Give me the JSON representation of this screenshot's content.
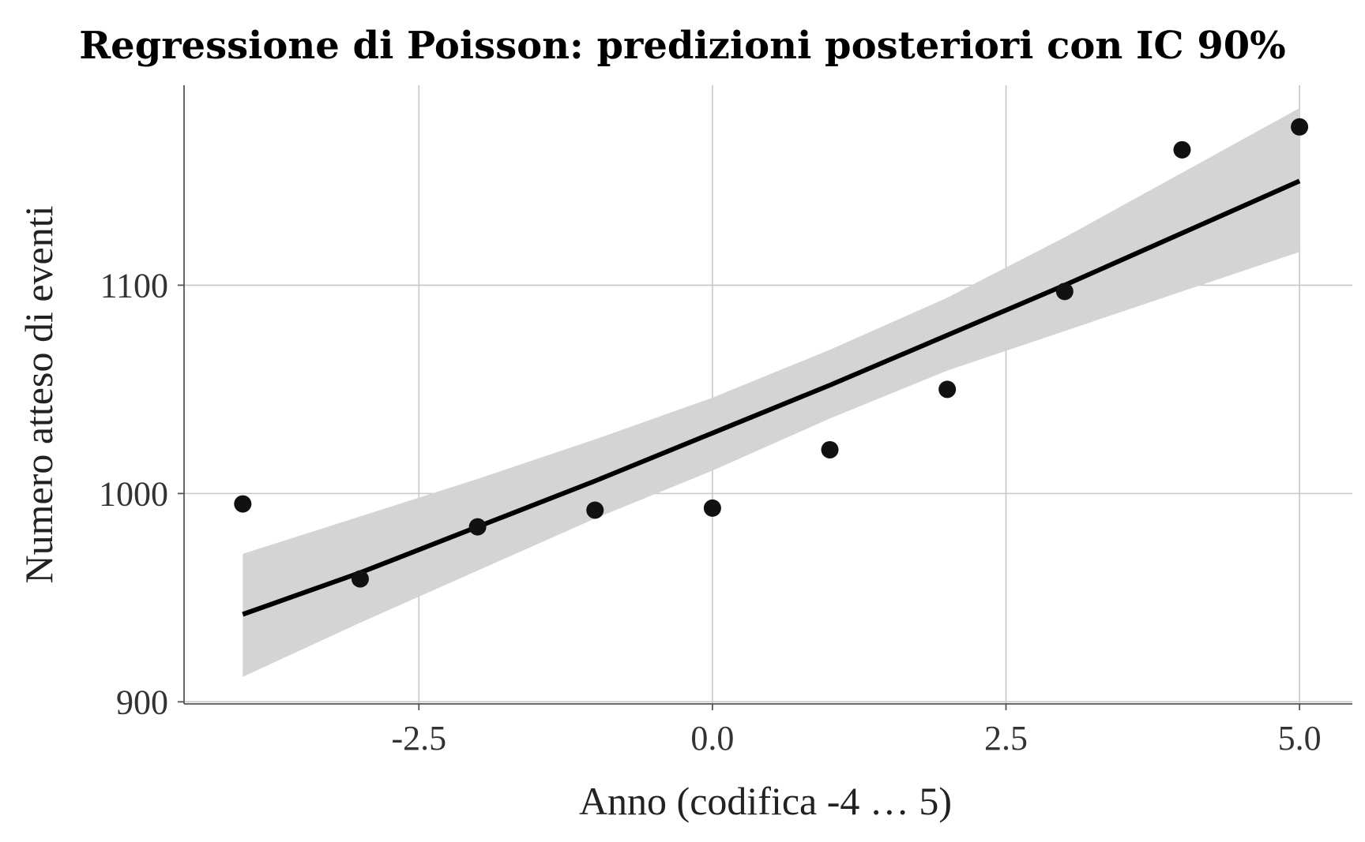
{
  "chart_data": {
    "type": "line",
    "title": "Regressione di Poisson: predizioni posteriori con IC 90%",
    "xlabel": "Anno (codifica -4 … 5)",
    "ylabel": "Numero atteso di eventi",
    "xlim": [
      -4.5,
      5.45
    ],
    "ylim": [
      899,
      1196
    ],
    "x_ticks": [
      -2.5,
      0.0,
      2.5,
      5.0
    ],
    "x_tick_labels": [
      "-2.5",
      "0.0",
      "2.5",
      "5.0"
    ],
    "y_ticks": [
      900,
      1000,
      1100
    ],
    "y_tick_labels": [
      "900",
      "1000",
      "1100"
    ],
    "grid": true,
    "legend": "none",
    "observed": {
      "x": [
        -4,
        -3,
        -2,
        -1,
        0,
        1,
        2,
        3,
        4,
        5
      ],
      "y": [
        995,
        959,
        984,
        992,
        993,
        1021,
        1050,
        1097,
        1165,
        1176
      ]
    },
    "prediction": {
      "x": [
        -4,
        -3,
        -2,
        -1,
        0,
        1,
        2,
        3,
        4,
        5
      ],
      "y": [
        942,
        962,
        984,
        1006,
        1029,
        1052,
        1076,
        1100,
        1125,
        1150
      ]
    },
    "interval_90": {
      "x": [
        -4,
        -3,
        -2,
        -1,
        0,
        1,
        2,
        3,
        4,
        5
      ],
      "lower": [
        912,
        938,
        963,
        988,
        1011,
        1036,
        1059,
        1078,
        1097,
        1116
      ],
      "upper": [
        971,
        989,
        1007,
        1026,
        1046,
        1069,
        1094,
        1123,
        1154,
        1185
      ]
    },
    "colors": {
      "band": "#d4d4d4",
      "line": "#000000",
      "points": "#111111",
      "grid": "#c8c8c8"
    }
  }
}
